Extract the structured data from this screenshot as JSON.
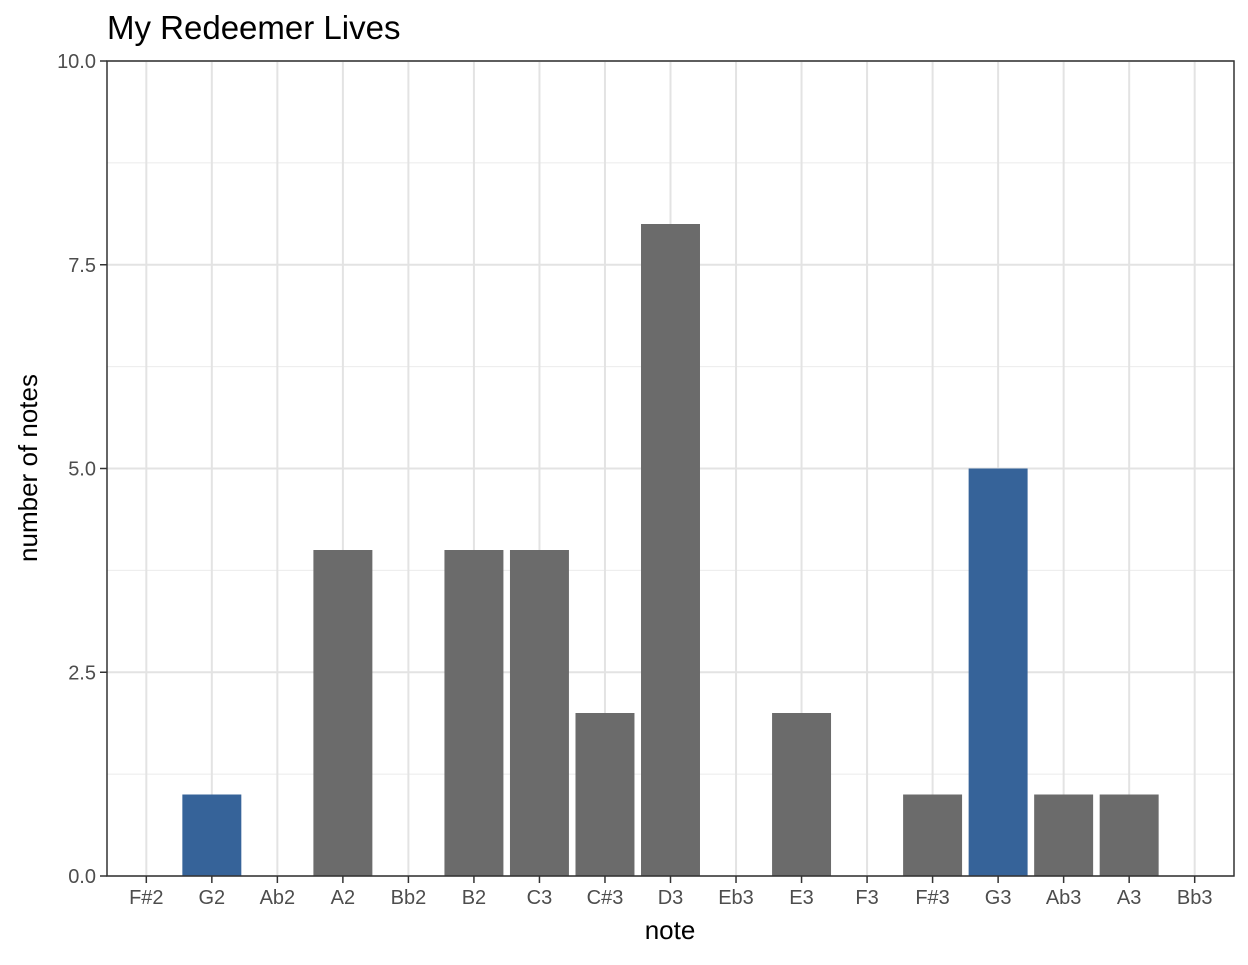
{
  "chart_data": {
    "type": "bar",
    "title": "My Redeemer Lives",
    "xlabel": "note",
    "ylabel": "number of notes",
    "categories": [
      "F#2",
      "G2",
      "Ab2",
      "A2",
      "Bb2",
      "B2",
      "C3",
      "C#3",
      "D3",
      "Eb3",
      "E3",
      "F3",
      "F#3",
      "G3",
      "Ab3",
      "A3",
      "Bb3"
    ],
    "values": [
      0,
      1,
      0,
      4,
      0,
      4,
      4,
      2,
      8,
      0,
      2,
      0,
      1,
      5,
      1,
      1,
      0
    ],
    "highlighted": [
      "G2",
      "G3"
    ],
    "colors": {
      "default": "#6b6b6b",
      "highlight": "#366399"
    },
    "ylim": [
      0,
      10
    ],
    "yticks": [
      0,
      2.5,
      5,
      7.5,
      10
    ],
    "ytick_labels": [
      "0.0",
      "2.5",
      "5.0",
      "7.5",
      "10.0"
    ],
    "grid": true,
    "legend": "none"
  }
}
